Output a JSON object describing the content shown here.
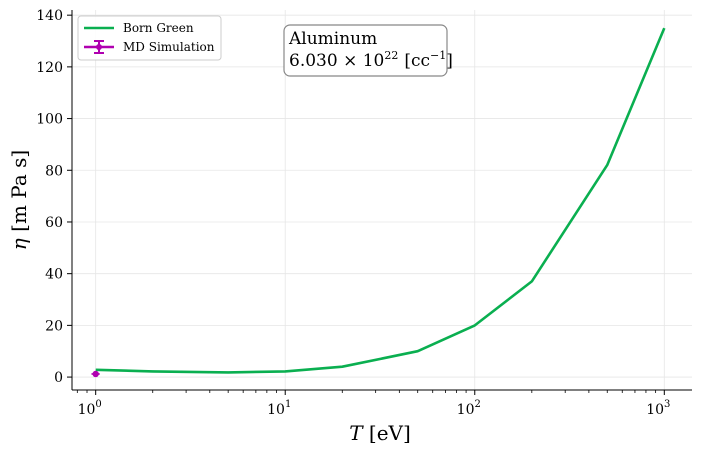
{
  "chart_data": {
    "type": "line",
    "xscale": "log",
    "xlim": [
      0.75,
      1400
    ],
    "ylim": [
      -5,
      142
    ],
    "grid": true,
    "xlabel": "T [eV]",
    "ylabel": "η [m Pa s]",
    "x_ticks": [
      {
        "value": 1,
        "base": "10",
        "exp": "0"
      },
      {
        "value": 10,
        "base": "10",
        "exp": "1"
      },
      {
        "value": 100,
        "base": "10",
        "exp": "2"
      },
      {
        "value": 1000,
        "base": "10",
        "exp": "3"
      }
    ],
    "y_ticks": [
      0,
      20,
      40,
      60,
      80,
      100,
      120,
      140
    ],
    "annotation": {
      "line1": "Aluminum",
      "line2_mantissa": "6.030 × 10",
      "line2_exp": "22",
      "line2_unit": "[cc",
      "line2_unit_exp": "−1",
      "line2_close": "]"
    },
    "legend": {
      "placement": "top-left"
    },
    "series": [
      {
        "name": "Born Green",
        "color": "#0aaf50",
        "style": "line",
        "x": [
          1,
          2,
          5,
          10,
          20,
          50,
          100,
          200,
          500,
          1000
        ],
        "y": [
          2.8,
          2.2,
          1.8,
          2.2,
          4.0,
          10.0,
          20.0,
          37.0,
          82.0,
          135.0
        ]
      },
      {
        "name": "MD Simulation",
        "color": "#b000b0",
        "style": "errorbar",
        "x": [
          1
        ],
        "y": [
          1.2
        ],
        "xerr": [
          0.05
        ],
        "yerr": [
          0.5
        ]
      }
    ]
  }
}
